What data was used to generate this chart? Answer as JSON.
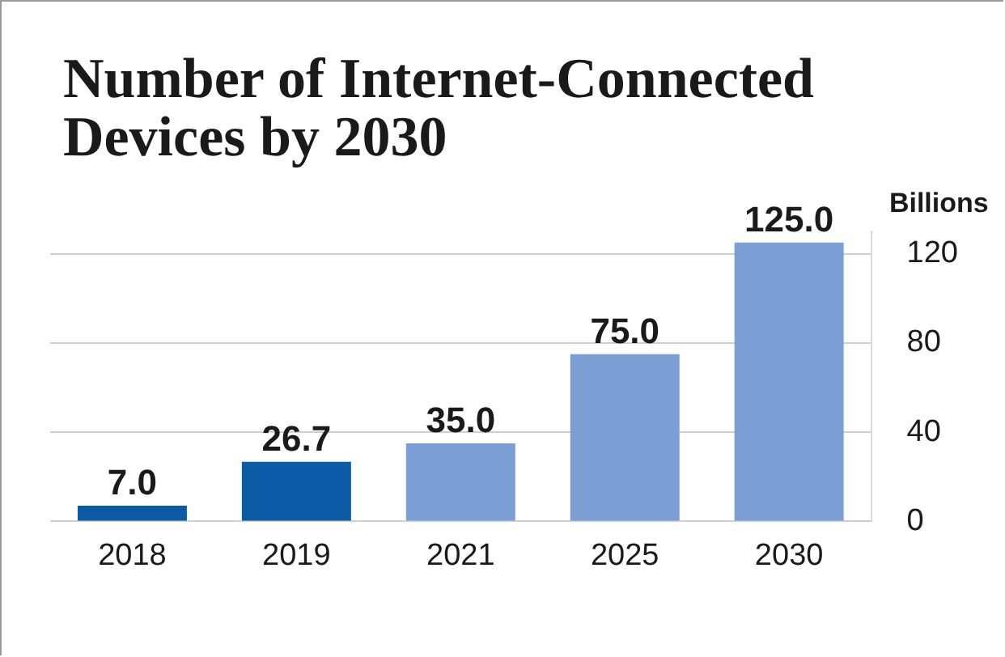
{
  "chart_data": {
    "type": "bar",
    "title": "Number of Internet-Connected Devices by 2030",
    "ylabel": "Billions",
    "categories": [
      "2018",
      "2019",
      "2021",
      "2025",
      "2030"
    ],
    "values": [
      7.0,
      26.7,
      35.0,
      75.0,
      125.0
    ],
    "colors": [
      "#0b5aa6",
      "#0b5aa6",
      "#7b9fd4",
      "#7b9fd4",
      "#7b9fd4"
    ],
    "value_labels": [
      "7.0",
      "26.7",
      "35.0",
      "75.0",
      "125.0"
    ],
    "ylim": [
      0,
      130
    ],
    "yticks": [
      0,
      40,
      80,
      120
    ],
    "grid": "y"
  }
}
